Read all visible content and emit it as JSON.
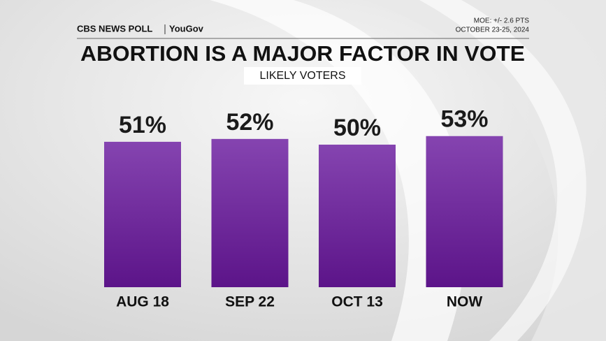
{
  "chart_data": {
    "type": "bar",
    "brand": "CBS NEWS POLL",
    "partner": "YouGov",
    "moe": "MOE: +/- 2.6 PTS",
    "dates": "OCTOBER 23-25, 2024",
    "title": "ABORTION IS A MAJOR FACTOR IN VOTE",
    "subtitle": "LIKELY VOTERS",
    "categories": [
      "AUG 18",
      "SEP 22",
      "OCT 13",
      "NOW"
    ],
    "values": [
      51,
      52,
      50,
      53
    ],
    "value_labels": [
      "51%",
      "52%",
      "50%",
      "53%"
    ],
    "color": "#8544b0"
  }
}
